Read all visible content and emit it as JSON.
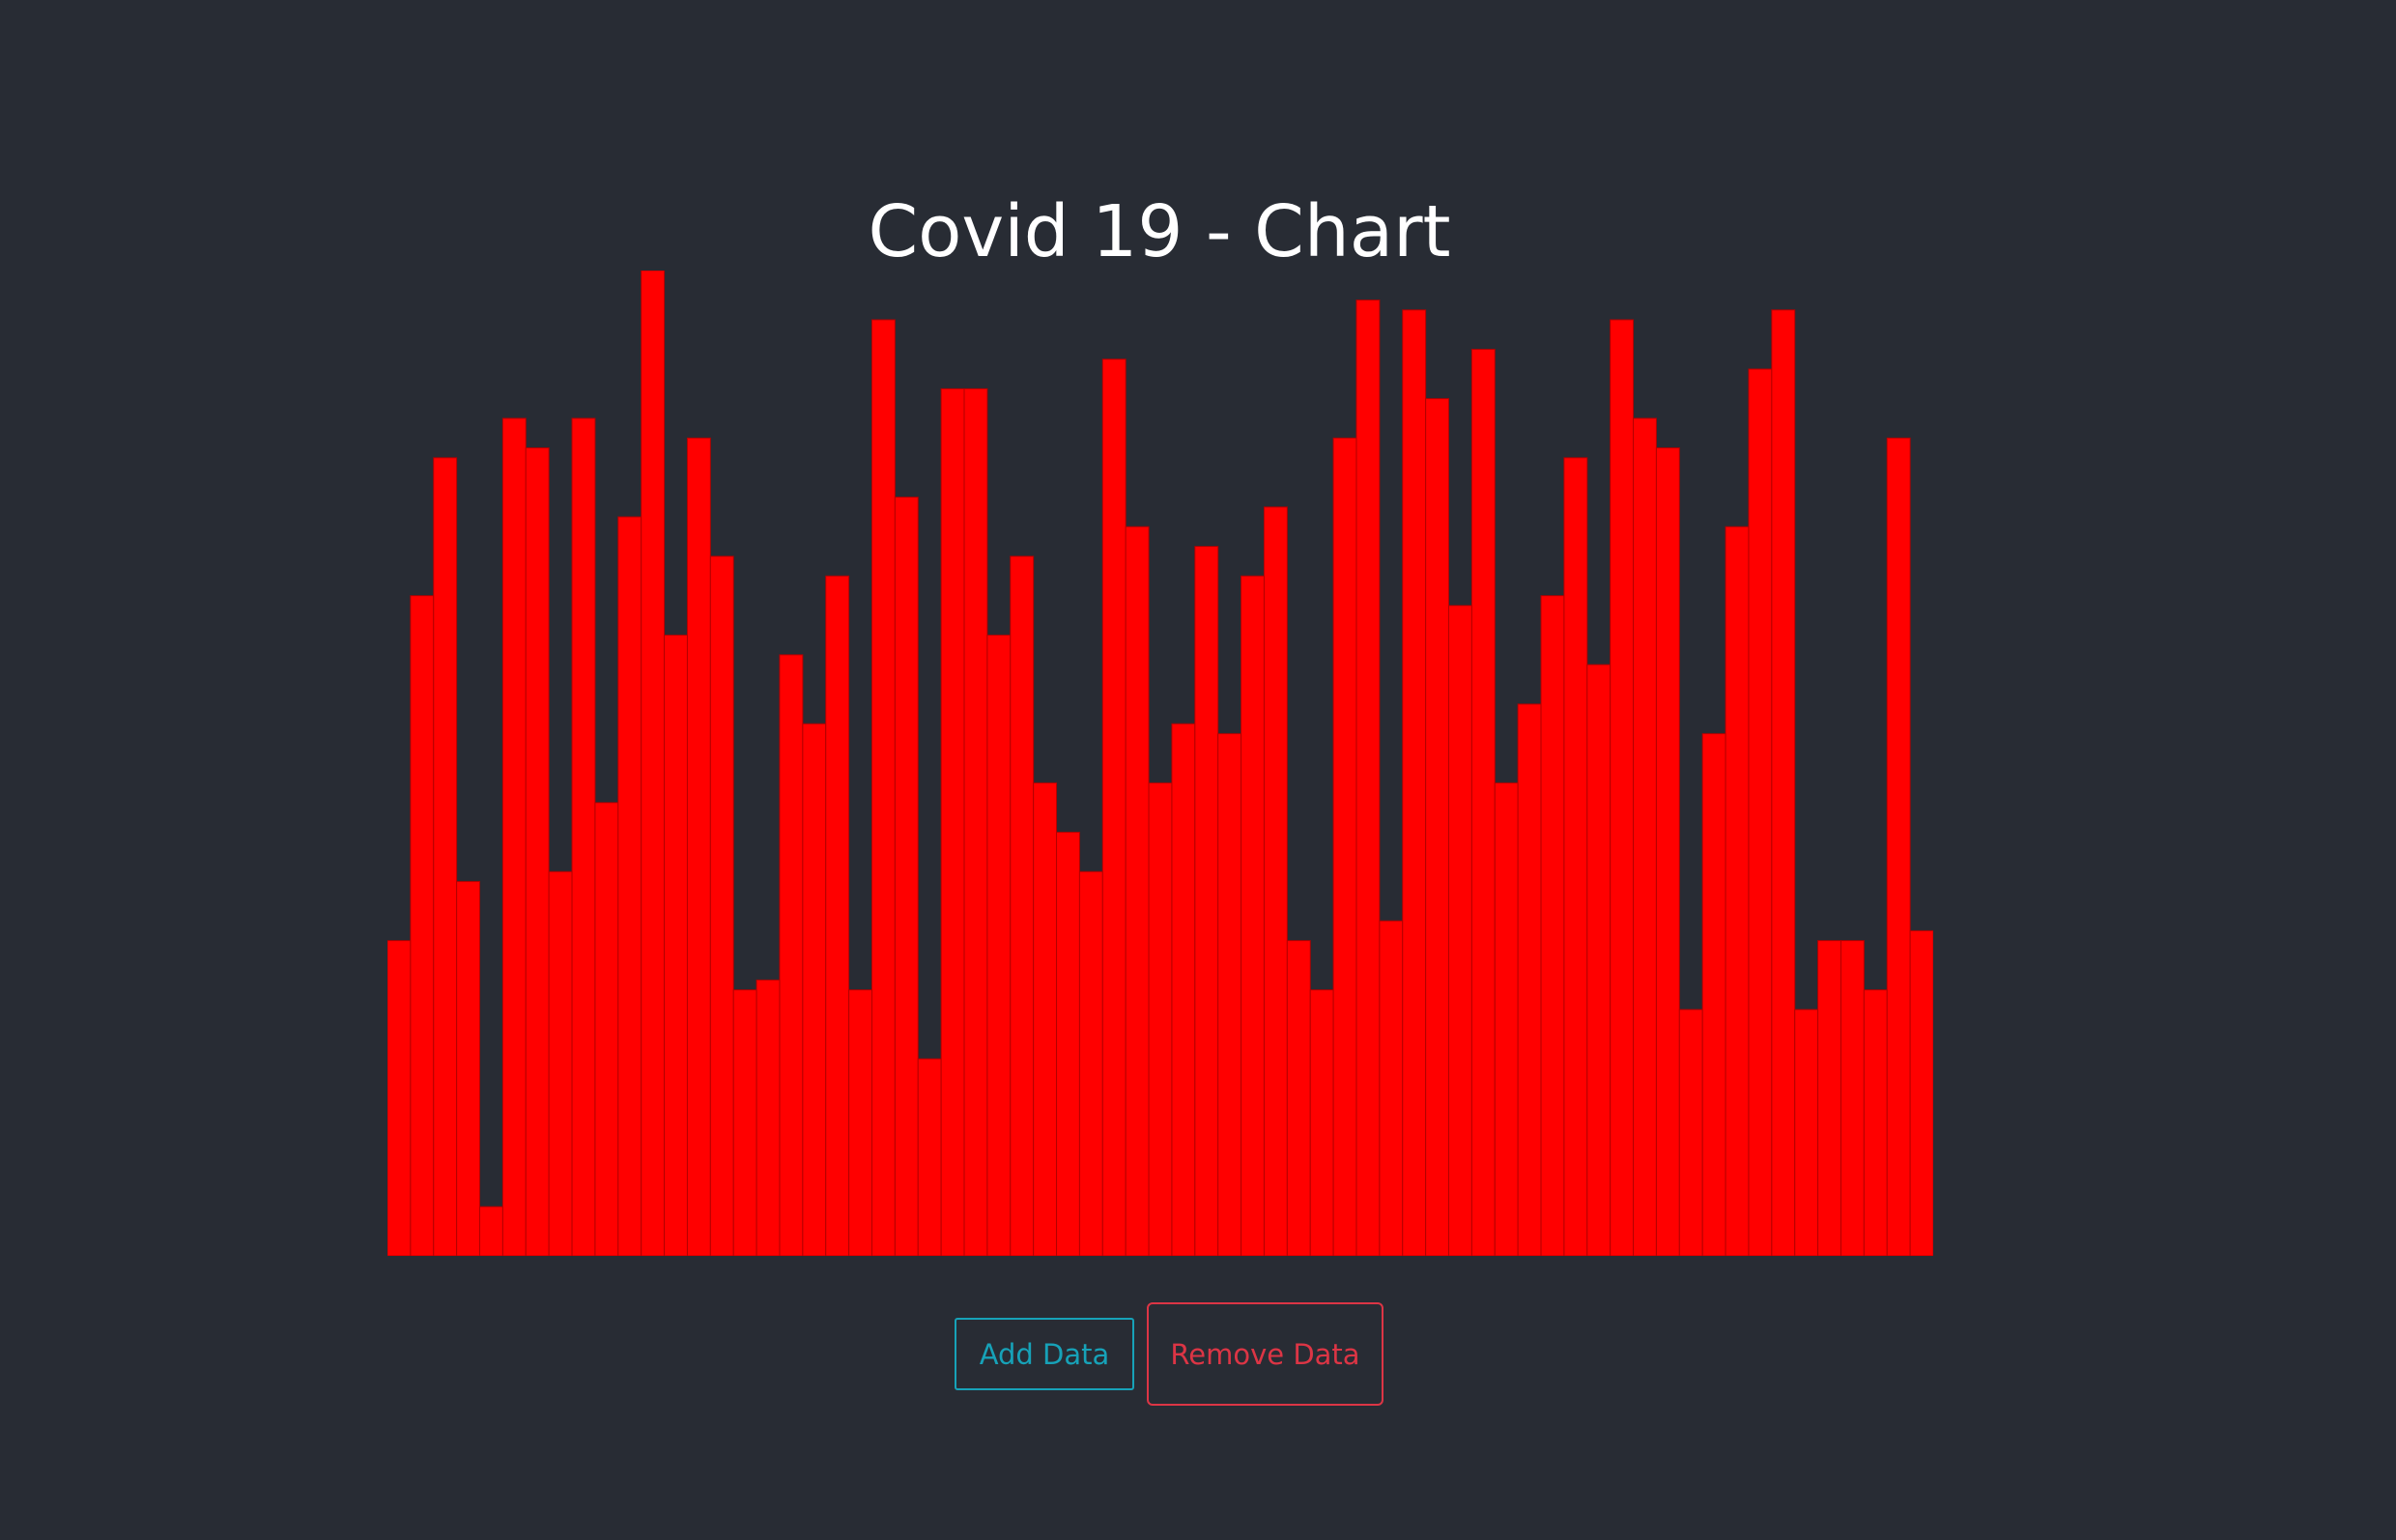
{
  "header": {
    "title": "Covid 19 - Chart"
  },
  "buttons": {
    "add_label": "Add Data",
    "remove_label": "Remove Data"
  },
  "colors": {
    "background": "#282c34",
    "bar": "#ff0000",
    "add": "#17a2b8",
    "remove": "#dc3545"
  },
  "chart_data": {
    "type": "bar",
    "ylim": [
      0,
      100
    ],
    "grid": false,
    "values": [
      32,
      67,
      81,
      38,
      5,
      85,
      82,
      39,
      85,
      46,
      75,
      100,
      63,
      83,
      71,
      27,
      28,
      61,
      54,
      69,
      27,
      95,
      77,
      20,
      88,
      88,
      63,
      71,
      48,
      43,
      39,
      91,
      74,
      48,
      54,
      72,
      53,
      69,
      76,
      32,
      27,
      83,
      97,
      34,
      96,
      87,
      66,
      92,
      48,
      56,
      67,
      81,
      60,
      95,
      85,
      82,
      25,
      53,
      74,
      90,
      96,
      25,
      32,
      32,
      27,
      83,
      33
    ]
  }
}
